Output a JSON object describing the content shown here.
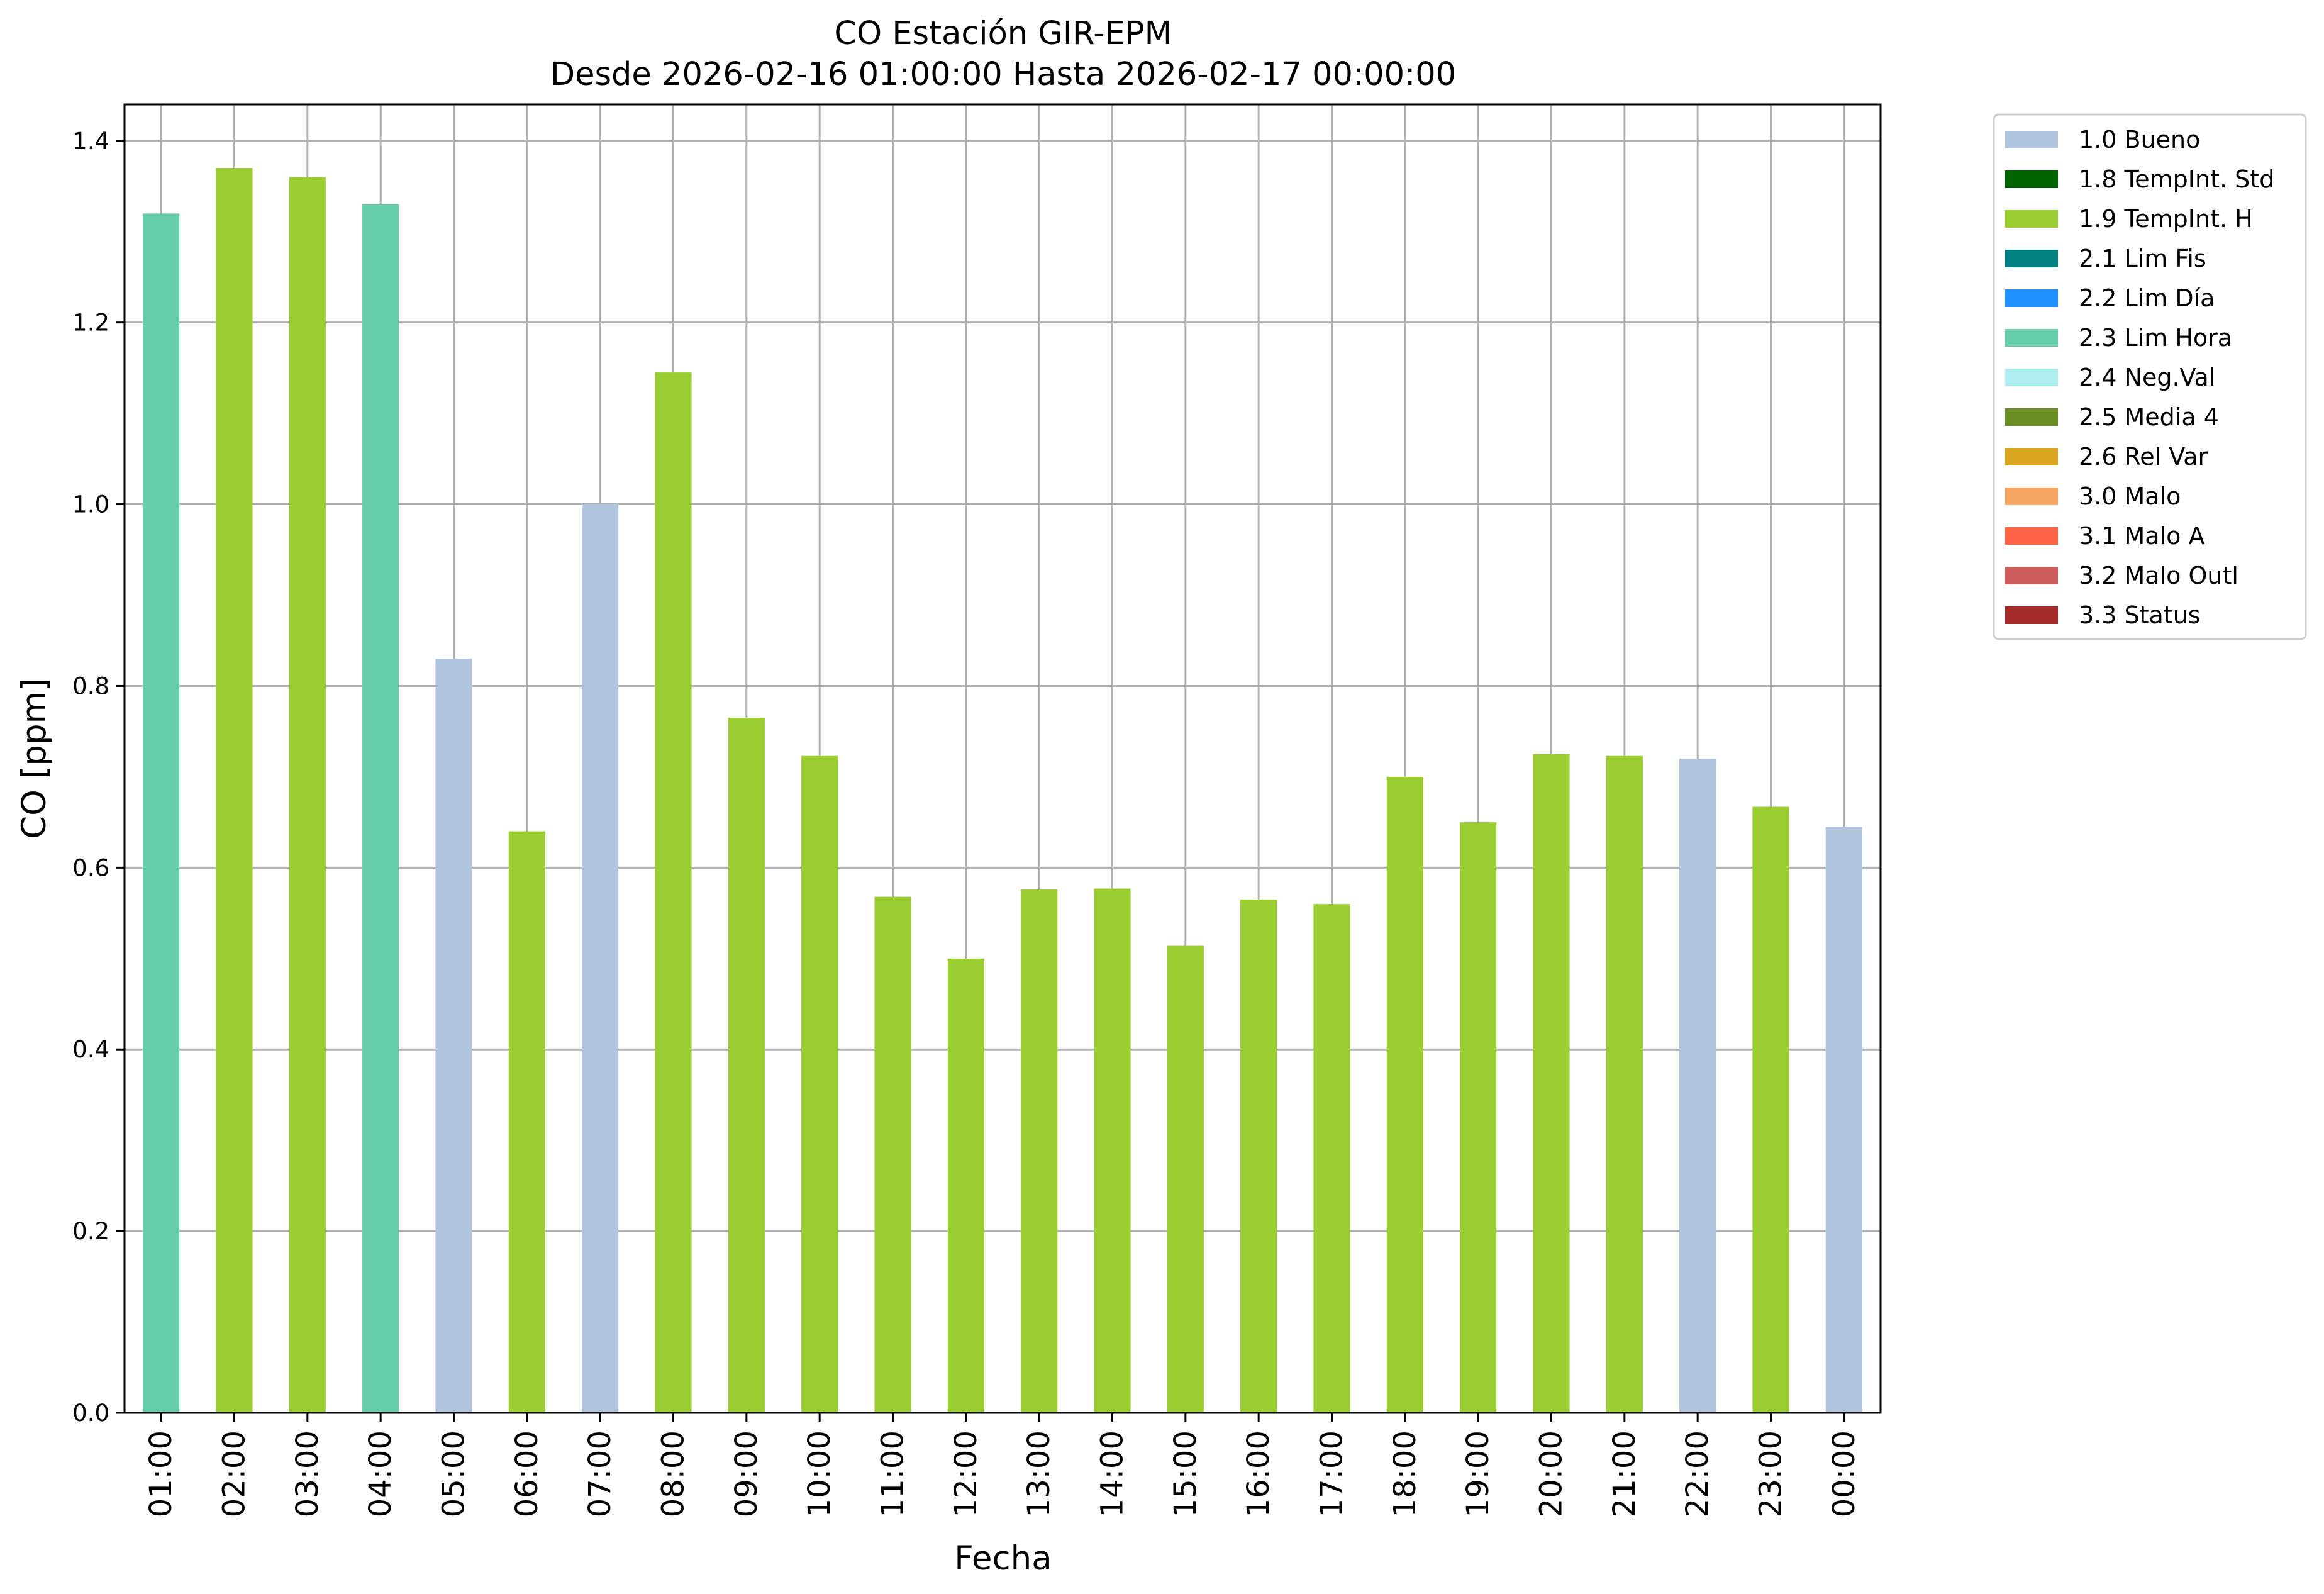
{
  "chart_data": {
    "type": "bar",
    "title": "CO Estación GIR-EPM",
    "subtitle": "Desde 2026-02-16 01:00:00 Hasta 2026-02-17 00:00:00",
    "xlabel": "Fecha",
    "ylabel": "CO [ppm]",
    "ylim": [
      0,
      1.44
    ],
    "yticks": [
      "0.0",
      "0.2",
      "0.4",
      "0.6",
      "0.8",
      "1.0",
      "1.2",
      "1.4"
    ],
    "grid": true,
    "legend_position": "outside-right",
    "categories": [
      "01:00",
      "02:00",
      "03:00",
      "04:00",
      "05:00",
      "06:00",
      "07:00",
      "08:00",
      "09:00",
      "10:00",
      "11:00",
      "12:00",
      "13:00",
      "14:00",
      "15:00",
      "16:00",
      "17:00",
      "18:00",
      "19:00",
      "20:00",
      "21:00",
      "22:00",
      "23:00",
      "00:00"
    ],
    "values": [
      1.32,
      1.37,
      1.36,
      1.33,
      0.83,
      0.64,
      1.0,
      1.145,
      0.765,
      0.723,
      0.568,
      0.5,
      0.576,
      0.577,
      0.514,
      0.565,
      0.56,
      0.7,
      0.65,
      0.725,
      0.723,
      0.72,
      0.667,
      0.645
    ],
    "flags": [
      "2.3 Lim Hora",
      "1.9 TempInt. H",
      "1.9 TempInt. H",
      "2.3 Lim Hora",
      "1.0 Bueno",
      "1.9 TempInt. H",
      "1.0 Bueno",
      "1.9 TempInt. H",
      "1.9 TempInt. H",
      "1.9 TempInt. H",
      "1.9 TempInt. H",
      "1.9 TempInt. H",
      "1.9 TempInt. H",
      "1.9 TempInt. H",
      "1.9 TempInt. H",
      "1.9 TempInt. H",
      "1.9 TempInt. H",
      "1.9 TempInt. H",
      "1.9 TempInt. H",
      "1.9 TempInt. H",
      "1.9 TempInt. H",
      "1.0 Bueno",
      "1.9 TempInt. H",
      "1.0 Bueno"
    ],
    "legend": [
      {
        "label": "1.0 Bueno",
        "color": "#b0c4de"
      },
      {
        "label": "1.8 TempInt. Std",
        "color": "#006400"
      },
      {
        "label": "1.9 TempInt. H",
        "color": "#9acd32"
      },
      {
        "label": "2.1 Lim Fis",
        "color": "#008080"
      },
      {
        "label": "2.2 Lim Día",
        "color": "#1e90ff"
      },
      {
        "label": "2.3 Lim Hora",
        "color": "#66cdaa"
      },
      {
        "label": "2.4 Neg.Val",
        "color": "#afeeee"
      },
      {
        "label": "2.5 Media 4",
        "color": "#6b8e23"
      },
      {
        "label": "2.6 Rel Var",
        "color": "#daa520"
      },
      {
        "label": "3.0 Malo",
        "color": "#f4a460"
      },
      {
        "label": "3.1 Malo A",
        "color": "#ff6347"
      },
      {
        "label": "3.2 Malo Outl",
        "color": "#cd5c5c"
      },
      {
        "label": "3.3 Status",
        "color": "#a52a2a"
      }
    ]
  }
}
